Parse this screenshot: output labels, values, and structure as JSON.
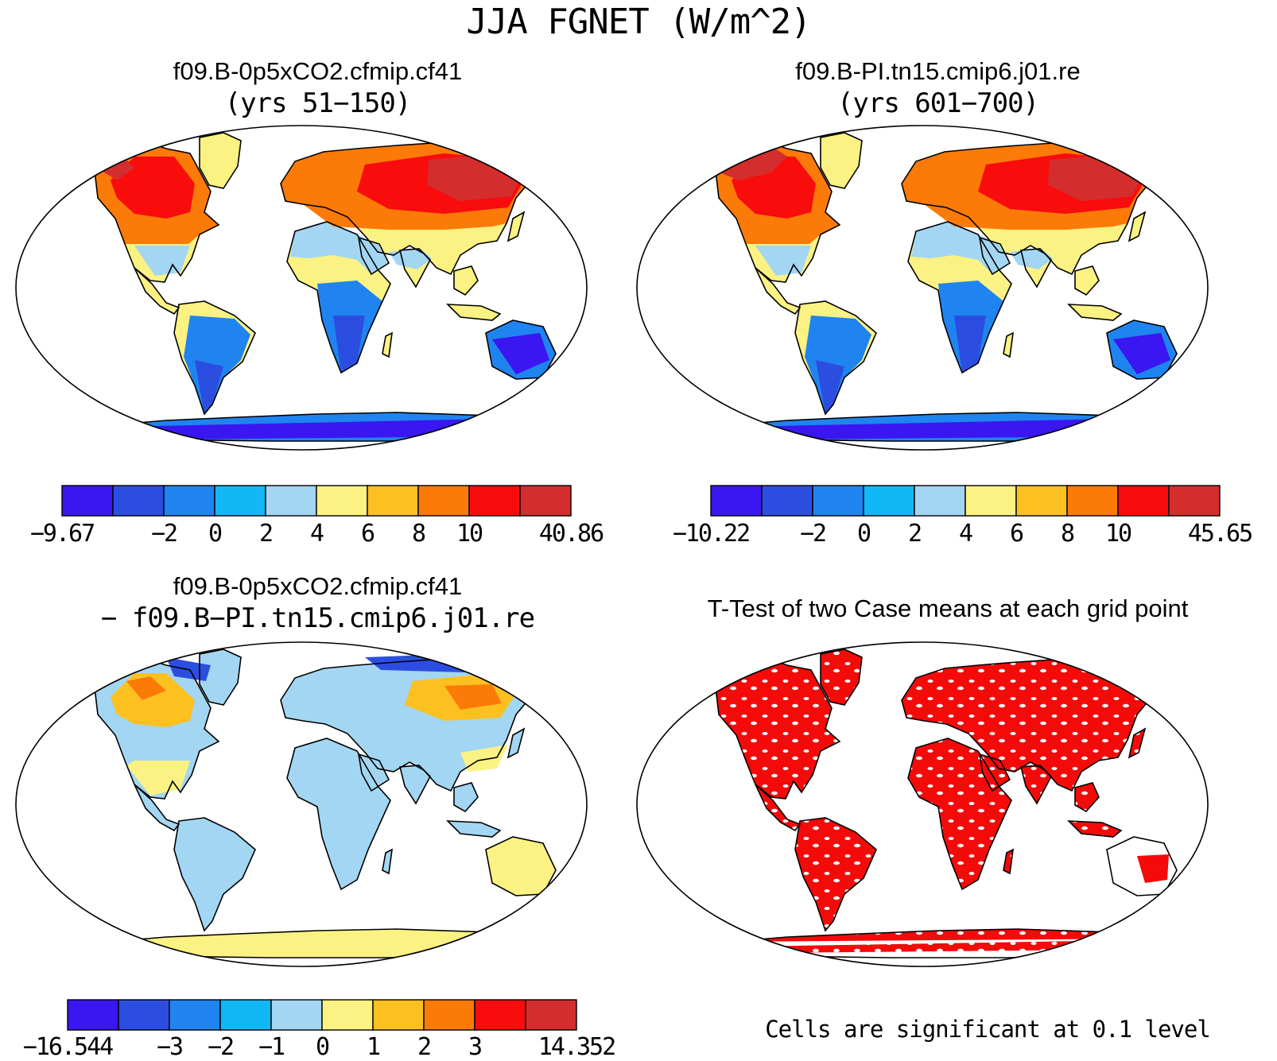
{
  "main_title": "JJA FGNET (W/m^2)",
  "panels": [
    {
      "id": "case1",
      "title": "f09.B-0p5xCO2.cfmip.cf41",
      "subtitle": "(yrs 51−150)",
      "colorbar": {
        "colors": [
          "#3a16f0",
          "#2c4ee0",
          "#1f84f0",
          "#12b8f5",
          "#a3d6f2",
          "#fbf283",
          "#fcc020",
          "#fc7a08",
          "#f80c0c",
          "#d42d2d"
        ],
        "labels": [
          "−9.67",
          "−2",
          "0",
          "2",
          "4",
          "6",
          "8",
          "10",
          "40.86"
        ]
      }
    },
    {
      "id": "case2",
      "title": "f09.B-PI.tn15.cmip6.j01.re",
      "subtitle": "(yrs 601−700)",
      "colorbar": {
        "colors": [
          "#3a16f0",
          "#2c4ee0",
          "#1f84f0",
          "#12b8f5",
          "#a3d6f2",
          "#fbf283",
          "#fcc020",
          "#fc7a08",
          "#f80c0c",
          "#d42d2d"
        ],
        "labels": [
          "−10.22",
          "−2",
          "0",
          "2",
          "4",
          "6",
          "8",
          "10",
          "45.65"
        ]
      }
    },
    {
      "id": "diff",
      "title": "f09.B-0p5xCO2.cfmip.cf41",
      "subtitle": "− f09.B−PI.tn15.cmip6.j01.re",
      "colorbar": {
        "colors": [
          "#3a16f0",
          "#2c4ee0",
          "#1f84f0",
          "#12b8f5",
          "#a3d6f2",
          "#fbf283",
          "#fcc020",
          "#fc7a08",
          "#f80c0c",
          "#d42d2d"
        ],
        "labels": [
          "−16.544",
          "−3",
          "−2",
          "−1",
          "0",
          "1",
          "2",
          "3",
          "14.352"
        ]
      }
    },
    {
      "id": "ttest",
      "title": "T-Test of two Case means at each grid point",
      "note": "Cells are significant at 0.1 level",
      "significant_color": "#f50a0a"
    }
  ]
}
